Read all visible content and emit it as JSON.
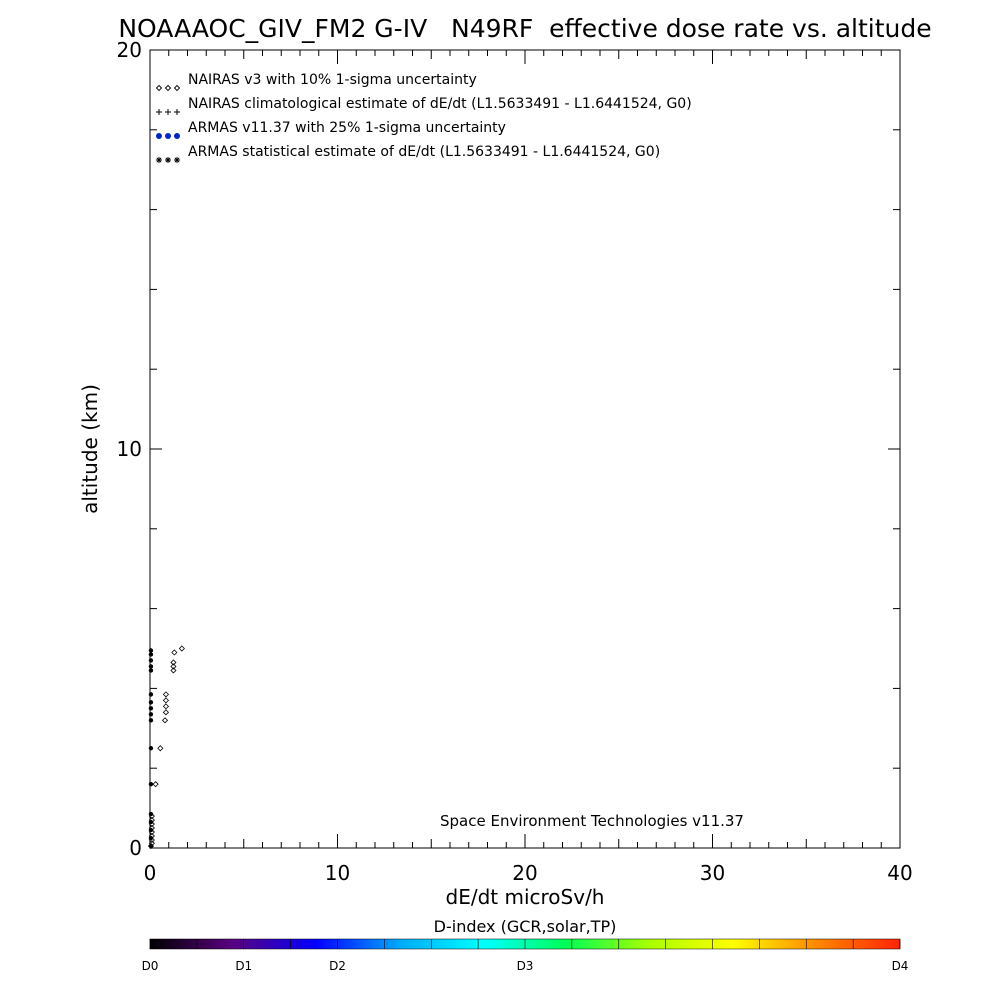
{
  "chart_data": {
    "type": "scatter",
    "title": "NOAAAOC_GIV_FM2 G-IV   N49RF  effective dose rate vs. altitude",
    "xlabel": "dE/dt microSv/h",
    "ylabel": "altitude (km)",
    "xlim": [
      0,
      40
    ],
    "ylim": [
      0,
      20
    ],
    "x_ticks": [
      "0",
      "10",
      "20",
      "30",
      "40"
    ],
    "y_ticks": [
      "0",
      "10",
      "20"
    ],
    "grid": false,
    "legend_position": "top-left",
    "legend": [
      "NAIRAS v3 with 10% 1-sigma uncertainty",
      "NAIRAS climatological estimate of dE/dt (L1.5633491 - L1.6441524, G0)",
      "ARMAS v11.37 with 25% 1-sigma uncertainty",
      "ARMAS statistical estimate of dE/dt (L1.5633491 - L1.6441524, G0)"
    ],
    "legend_colors": [
      "#000000",
      "#000000",
      "#0022cc",
      "#000000"
    ],
    "annotation": "Space Environment Technologies v11.37",
    "series": [
      {
        "name": "NAIRAS v3 with 10% 1-sigma uncertainty",
        "marker": "diamond",
        "color": "#000000",
        "points": [
          [
            0.05,
            0.05
          ],
          [
            0.1,
            0.12
          ],
          [
            0.1,
            0.2
          ],
          [
            0.1,
            0.3
          ],
          [
            0.1,
            0.4
          ],
          [
            0.1,
            0.5
          ],
          [
            0.1,
            0.6
          ],
          [
            0.1,
            0.7
          ],
          [
            0.1,
            0.8
          ],
          [
            0.3,
            1.6
          ],
          [
            0.55,
            2.5
          ],
          [
            0.8,
            3.2
          ],
          [
            0.85,
            3.4
          ],
          [
            0.85,
            3.55
          ],
          [
            0.85,
            3.7
          ],
          [
            0.85,
            3.85
          ],
          [
            1.25,
            4.45
          ],
          [
            1.25,
            4.55
          ],
          [
            1.25,
            4.65
          ],
          [
            1.3,
            4.9
          ],
          [
            1.7,
            5.0
          ]
        ]
      },
      {
        "name": "ARMAS statistical estimate of dE/dt (L1.5633491 - L1.6441524, G0)",
        "marker": "dot",
        "color": "#000000",
        "points": [
          [
            0.05,
            0.05
          ],
          [
            0.05,
            0.25
          ],
          [
            0.05,
            0.45
          ],
          [
            0.05,
            0.65
          ],
          [
            0.05,
            0.85
          ],
          [
            0.05,
            1.6
          ],
          [
            0.05,
            2.5
          ],
          [
            0.05,
            3.2
          ],
          [
            0.05,
            3.35
          ],
          [
            0.05,
            3.5
          ],
          [
            0.05,
            3.65
          ],
          [
            0.05,
            3.85
          ],
          [
            0.05,
            4.45
          ],
          [
            0.05,
            4.55
          ],
          [
            0.05,
            4.7
          ],
          [
            0.05,
            4.85
          ],
          [
            0.05,
            4.95
          ]
        ]
      }
    ],
    "colorbar": {
      "title": "D-index (GCR,solar,TP)",
      "labels": [
        "D0",
        "D1",
        "D2",
        "D3",
        "D4"
      ],
      "label_positions": [
        0,
        0.125,
        0.25,
        0.5,
        1.0
      ],
      "colors": [
        "#000000",
        "#5a0080",
        "#0000ff",
        "#00aaff",
        "#00ffff",
        "#00ff55",
        "#aaff00",
        "#ffff00",
        "#ff8800",
        "#ff2200"
      ]
    }
  }
}
